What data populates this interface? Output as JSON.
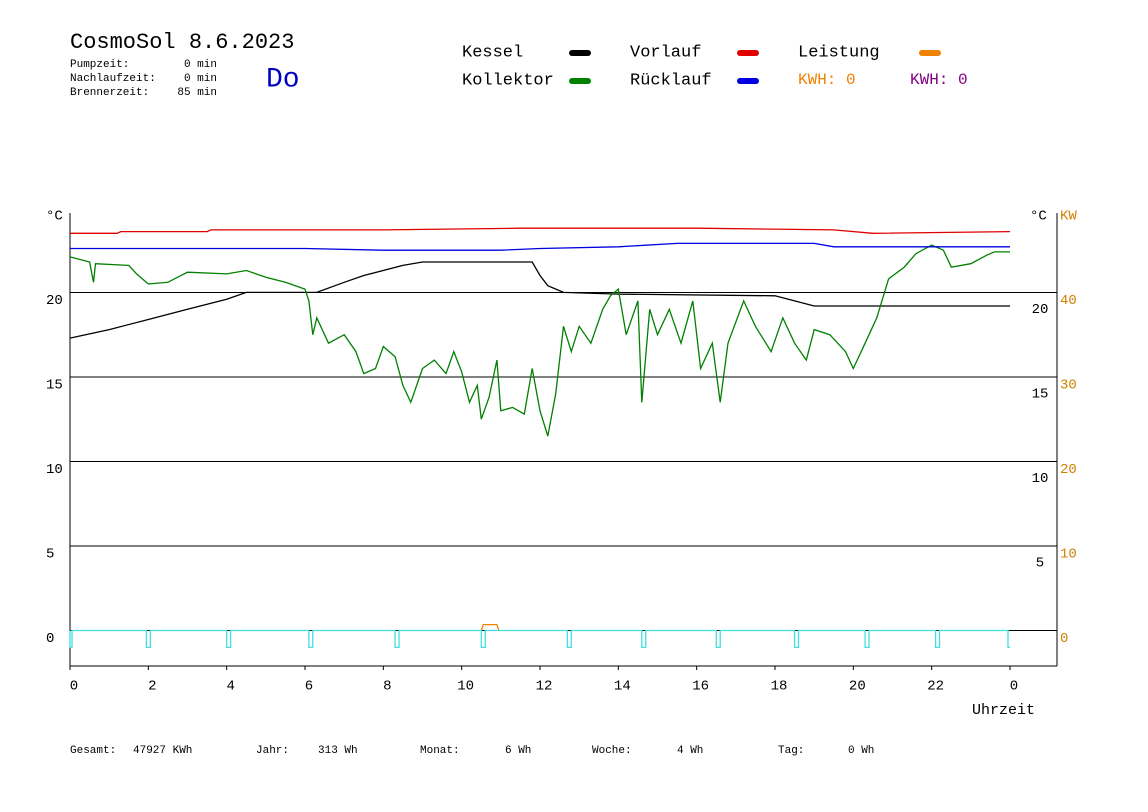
{
  "header": {
    "title": "CosmoSol 8.6.2023",
    "day": "Do",
    "info": [
      [
        "Pumpzeit:",
        "0 min"
      ],
      [
        "Nachlaufzeit:",
        "0 min"
      ],
      [
        "Brennerzeit:",
        "85 min"
      ]
    ],
    "kwh": [
      "KWH: 0",
      "KWH: 0"
    ]
  },
  "footer": [
    [
      "Gesamt:",
      "47927 KWh"
    ],
    [
      "Jahr:",
      "313 Wh"
    ],
    [
      "Monat:",
      "6 Wh"
    ],
    [
      "Woche:",
      "4 Wh"
    ],
    [
      "Tag:",
      "0 Wh"
    ]
  ],
  "chart_data": {
    "type": "line",
    "ylabel": "°C",
    "y2label_left": "°C",
    "y2label": "KW",
    "xlabel": "Uhrzeit",
    "xlim": [
      0,
      24
    ],
    "xticks": [
      0,
      2,
      4,
      6,
      8,
      10,
      12,
      14,
      16,
      18,
      20,
      22,
      {
        "value": 24,
        "label": "0"
      }
    ],
    "ylim": [
      -2.1,
      24.7
    ],
    "yticks": [
      0,
      5,
      10,
      15,
      20
    ],
    "y2lim": [
      -4.2,
      49.4
    ],
    "y2ticks": [
      0,
      10,
      20,
      30,
      40
    ],
    "grid": true,
    "series": [
      {
        "name": "Kessel",
        "color": "#000000",
        "x": [
          0,
          1,
          2,
          3,
          4,
          4.5,
          6.3,
          7,
          7.5,
          8.5,
          9,
          11.8,
          12,
          12.2,
          12.6,
          14,
          18,
          18.5,
          19,
          24
        ],
        "values": [
          17.3,
          17.8,
          18.4,
          19,
          19.6,
          20,
          20,
          20.6,
          21,
          21.6,
          21.8,
          21.8,
          21,
          20.4,
          20,
          19.9,
          19.8,
          19.5,
          19.2,
          19.2
        ]
      },
      {
        "name": "Kollektor",
        "color": "#008000",
        "x": [
          0,
          0.5,
          0.6,
          0.65,
          1.5,
          1.7,
          2,
          2.5,
          3,
          4,
          4.5,
          5,
          5.5,
          6,
          6.1,
          6.2,
          6.3,
          6.6,
          7,
          7.3,
          7.5,
          7.8,
          8,
          8.3,
          8.5,
          8.7,
          9,
          9.3,
          9.6,
          9.8,
          10,
          10.2,
          10.4,
          10.5,
          10.7,
          10.9,
          11,
          11.3,
          11.6,
          11.8,
          12,
          12.2,
          12.4,
          12.6,
          12.8,
          13,
          13.3,
          13.6,
          13.8,
          14,
          14.2,
          14.5,
          14.6,
          14.8,
          15,
          15.3,
          15.6,
          15.9,
          16.1,
          16.4,
          16.6,
          16.8,
          17.2,
          17.5,
          17.9,
          18.2,
          18.5,
          18.8,
          19,
          19.4,
          19.8,
          20,
          20.3,
          20.6,
          20.9,
          21.3,
          21.6,
          22,
          22.3,
          22.5,
          23,
          23.4,
          23.6,
          24
        ],
        "values": [
          22.1,
          21.8,
          20.6,
          21.7,
          21.6,
          21.1,
          20.5,
          20.6,
          21.2,
          21.1,
          21.3,
          20.9,
          20.6,
          20.2,
          19.5,
          17.5,
          18.5,
          17,
          17.5,
          16.5,
          15.2,
          15.5,
          16.8,
          16.2,
          14.5,
          13.5,
          15.5,
          16,
          15.2,
          16.5,
          15.3,
          13.5,
          14.5,
          12.5,
          13.8,
          16,
          13,
          13.2,
          12.8,
          15.5,
          13,
          11.5,
          14,
          18,
          16.5,
          18,
          17,
          19,
          19.8,
          20.2,
          17.5,
          19.5,
          13.5,
          19,
          17.5,
          19,
          17,
          19.5,
          15.5,
          17,
          13.5,
          17,
          19.5,
          18,
          16.5,
          18.5,
          17,
          16,
          17.8,
          17.5,
          16.5,
          15.5,
          17,
          18.5,
          20.8,
          21.5,
          22.3,
          22.8,
          22.5,
          21.5,
          21.7,
          22.2,
          22.4,
          22.4
        ]
      },
      {
        "name": "Vorlauf",
        "color": "#e00000",
        "x": [
          0,
          1.2,
          1.3,
          3.5,
          3.6,
          5.5,
          8,
          11.5,
          16,
          19.5,
          20.5,
          24
        ],
        "values": [
          23.5,
          23.5,
          23.6,
          23.6,
          23.7,
          23.7,
          23.7,
          23.8,
          23.8,
          23.7,
          23.5,
          23.6
        ]
      },
      {
        "name": "Rücklauf",
        "color": "#0000e0",
        "x": [
          0,
          6,
          8,
          11,
          12,
          14,
          15.5,
          19,
          19.5,
          24
        ],
        "values": [
          22.6,
          22.6,
          22.5,
          22.5,
          22.6,
          22.7,
          22.9,
          22.9,
          22.7,
          22.7
        ]
      },
      {
        "name": "Leistung",
        "color": "#f08000",
        "axis": "y2",
        "x": [
          10.5,
          10.55,
          10.9,
          10.95
        ],
        "values": [
          0,
          0.7,
          0.7,
          0
        ]
      },
      {
        "color": "#40e0e0",
        "x": [
          0,
          0,
          0.05,
          0.05,
          1.95,
          1.95,
          2.05,
          2.05,
          4,
          4,
          4.1,
          4.1,
          6.1,
          6.1,
          6.2,
          6.2,
          8.3,
          8.3,
          8.4,
          8.4,
          10.5,
          10.5,
          10.6,
          10.6,
          12.7,
          12.7,
          12.8,
          12.8,
          14.6,
          14.6,
          14.7,
          14.7,
          16.5,
          16.5,
          16.6,
          16.6,
          18.5,
          18.5,
          18.6,
          18.6,
          20.3,
          20.3,
          20.4,
          20.4,
          22.1,
          22.1,
          22.2,
          22.2,
          23.95,
          23.95,
          24
        ],
        "values": [
          0,
          -1,
          -1,
          0,
          0,
          -1,
          -1,
          0,
          0,
          -1,
          -1,
          0,
          0,
          -1,
          -1,
          0,
          0,
          -1,
          -1,
          0,
          0,
          -1,
          -1,
          0,
          0,
          -1,
          -1,
          0,
          0,
          -1,
          -1,
          0,
          0,
          -1,
          -1,
          0,
          0,
          -1,
          -1,
          0,
          0,
          -1,
          -1,
          0,
          0,
          -1,
          -1,
          0,
          0,
          -1,
          -1
        ]
      }
    ]
  }
}
